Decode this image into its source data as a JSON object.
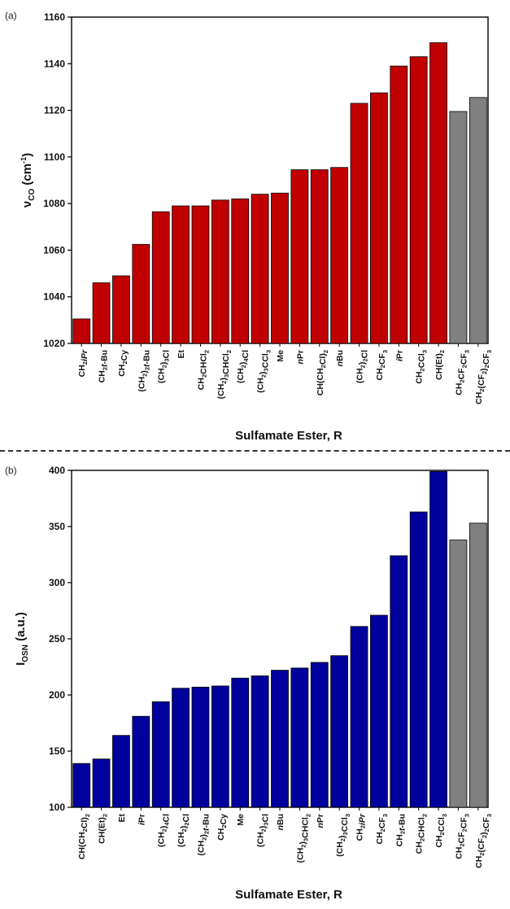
{
  "panels": [
    {
      "label": "(a)",
      "xlabel": "Sulfamate Ester, R",
      "chart_data": {
        "type": "bar",
        "title": "",
        "xlabel": "Sulfamate Ester, R",
        "ylabel_main": "ν",
        "ylabel_sub": "CO",
        "ylabel_unit": "(cm",
        "ylabel_sup": "-1",
        "ylabel_end": ")",
        "ylim": [
          1020,
          1160
        ],
        "yticks": [
          1020,
          1040,
          1060,
          1080,
          1100,
          1120,
          1140,
          1160
        ],
        "colors": {
          "primary": "#c00000",
          "reference": "#808080"
        },
        "categories": [
          [
            [
              "CH",
              "n"
            ],
            [
              "2",
              "sub"
            ],
            [
              "iPr",
              "i"
            ]
          ],
          [
            [
              "CH",
              "n"
            ],
            [
              "2",
              "sub"
            ],
            [
              "t",
              "i"
            ],
            [
              "-Bu",
              "n"
            ]
          ],
          [
            [
              "CH",
              "n"
            ],
            [
              "2",
              "sub"
            ],
            [
              "Cy",
              "n"
            ]
          ],
          [
            [
              "(CH",
              "n"
            ],
            [
              "2",
              "sub"
            ],
            [
              ")",
              "n"
            ],
            [
              "2",
              "sub"
            ],
            [
              "t",
              "i"
            ],
            [
              "-Bu",
              "n"
            ]
          ],
          [
            [
              "(CH",
              "n"
            ],
            [
              "2",
              "sub"
            ],
            [
              ")",
              "n"
            ],
            [
              "3",
              "sub"
            ],
            [
              "Cl",
              "n"
            ]
          ],
          [
            [
              "Et",
              "n"
            ]
          ],
          [
            [
              "CH",
              "n"
            ],
            [
              "2",
              "sub"
            ],
            [
              "CHCl",
              "n"
            ],
            [
              "2",
              "sub"
            ]
          ],
          [
            [
              "(CH",
              "n"
            ],
            [
              "2",
              "sub"
            ],
            [
              ")",
              "n"
            ],
            [
              "3",
              "sub"
            ],
            [
              "CHCl",
              "n"
            ],
            [
              "2",
              "sub"
            ]
          ],
          [
            [
              "(CH",
              "n"
            ],
            [
              "2",
              "sub"
            ],
            [
              ")",
              "n"
            ],
            [
              "4",
              "sub"
            ],
            [
              "Cl",
              "n"
            ]
          ],
          [
            [
              "(CH",
              "n"
            ],
            [
              "2",
              "sub"
            ],
            [
              ")",
              "n"
            ],
            [
              "3",
              "sub"
            ],
            [
              "CCl",
              "n"
            ],
            [
              "3",
              "sub"
            ]
          ],
          [
            [
              "Me",
              "n"
            ]
          ],
          [
            [
              "n",
              "i"
            ],
            [
              "Pr",
              "n"
            ]
          ],
          [
            [
              "CH(CH",
              "n"
            ],
            [
              "2",
              "sub"
            ],
            [
              "Cl)",
              "n"
            ],
            [
              "2",
              "sub"
            ]
          ],
          [
            [
              "n",
              "i"
            ],
            [
              "Bu",
              "n"
            ]
          ],
          [
            [
              "(CH",
              "n"
            ],
            [
              "2",
              "sub"
            ],
            [
              ")",
              "n"
            ],
            [
              "2",
              "sub"
            ],
            [
              "Cl",
              "n"
            ]
          ],
          [
            [
              "CH",
              "n"
            ],
            [
              "2",
              "sub"
            ],
            [
              "CF",
              "n"
            ],
            [
              "3",
              "sub"
            ]
          ],
          [
            [
              "i",
              "i"
            ],
            [
              "Pr",
              "n"
            ]
          ],
          [
            [
              "CH",
              "n"
            ],
            [
              "2",
              "sub"
            ],
            [
              "CCl",
              "n"
            ],
            [
              "3",
              "sub"
            ]
          ],
          [
            [
              "CH(Et)",
              "n"
            ],
            [
              "2",
              "sub"
            ]
          ],
          [
            [
              "CH",
              "n"
            ],
            [
              "2",
              "sub"
            ],
            [
              "CF",
              "n"
            ],
            [
              "2",
              "sub"
            ],
            [
              "CF",
              "n"
            ],
            [
              "3",
              "sub"
            ]
          ],
          [
            [
              "CH",
              "n"
            ],
            [
              "2",
              "sub"
            ],
            [
              "(CF",
              "n"
            ],
            [
              "2",
              "sub"
            ],
            [
              ")",
              "n"
            ],
            [
              "2",
              "sub"
            ],
            [
              "CF",
              "n"
            ],
            [
              "3",
              "sub"
            ]
          ]
        ],
        "values": [
          1030.5,
          1046,
          1049,
          1062.5,
          1076.5,
          1079,
          1079,
          1081.5,
          1082,
          1084,
          1084.5,
          1094.5,
          1094.5,
          1095.5,
          1123,
          1127.5,
          1139,
          1143,
          1149,
          1119.5,
          1125.5
        ],
        "color_keys": [
          "primary",
          "primary",
          "primary",
          "primary",
          "primary",
          "primary",
          "primary",
          "primary",
          "primary",
          "primary",
          "primary",
          "primary",
          "primary",
          "primary",
          "primary",
          "primary",
          "primary",
          "primary",
          "primary",
          "reference",
          "reference"
        ]
      }
    },
    {
      "label": "(b)",
      "xlabel": "Sulfamate Ester, R",
      "chart_data": {
        "type": "bar",
        "title": "",
        "xlabel": "Sulfamate Ester, R",
        "ylabel_main": "I",
        "ylabel_sub": "OSN",
        "ylabel_unit": " (a.u.)",
        "ylabel_sup": "",
        "ylabel_end": "",
        "ylim": [
          100,
          400
        ],
        "yticks": [
          100,
          150,
          200,
          250,
          300,
          350,
          400
        ],
        "colors": {
          "primary": "#00009c",
          "reference": "#808080"
        },
        "categories": [
          [
            [
              "CH(CH",
              "n"
            ],
            [
              "2",
              "sub"
            ],
            [
              "Cl)",
              "n"
            ],
            [
              "2",
              "sub"
            ]
          ],
          [
            [
              "CH(Et)",
              "n"
            ],
            [
              "2",
              "sub"
            ]
          ],
          [
            [
              "Et",
              "n"
            ]
          ],
          [
            [
              "i",
              "i"
            ],
            [
              "Pr",
              "n"
            ]
          ],
          [
            [
              "(CH",
              "n"
            ],
            [
              "2",
              "sub"
            ],
            [
              ")",
              "n"
            ],
            [
              "4",
              "sub"
            ],
            [
              "Cl",
              "n"
            ]
          ],
          [
            [
              "(CH",
              "n"
            ],
            [
              "2",
              "sub"
            ],
            [
              ")",
              "n"
            ],
            [
              "2",
              "sub"
            ],
            [
              "Cl",
              "n"
            ]
          ],
          [
            [
              "(CH",
              "n"
            ],
            [
              "2",
              "sub"
            ],
            [
              ")",
              "n"
            ],
            [
              "2",
              "sub"
            ],
            [
              "t",
              "i"
            ],
            [
              "-Bu",
              "n"
            ]
          ],
          [
            [
              "CH",
              "n"
            ],
            [
              "2",
              "sub"
            ],
            [
              "Cy",
              "n"
            ]
          ],
          [
            [
              "Me",
              "n"
            ]
          ],
          [
            [
              "(CH",
              "n"
            ],
            [
              "2",
              "sub"
            ],
            [
              ")",
              "n"
            ],
            [
              "3",
              "sub"
            ],
            [
              "Cl",
              "n"
            ]
          ],
          [
            [
              "n",
              "i"
            ],
            [
              "Bu",
              "n"
            ]
          ],
          [
            [
              "(CH",
              "n"
            ],
            [
              "2",
              "sub"
            ],
            [
              ")",
              "n"
            ],
            [
              "3",
              "sub"
            ],
            [
              "CHCl",
              "n"
            ],
            [
              "2",
              "sub"
            ]
          ],
          [
            [
              "n",
              "i"
            ],
            [
              "Pr",
              "n"
            ]
          ],
          [
            [
              "(CH",
              "n"
            ],
            [
              "2",
              "sub"
            ],
            [
              ")",
              "n"
            ],
            [
              "3",
              "sub"
            ],
            [
              "CCl",
              "n"
            ],
            [
              "3",
              "sub"
            ]
          ],
          [
            [
              "CH",
              "n"
            ],
            [
              "2",
              "sub"
            ],
            [
              "iPr",
              "i"
            ]
          ],
          [
            [
              "CH",
              "n"
            ],
            [
              "2",
              "sub"
            ],
            [
              "CF",
              "n"
            ],
            [
              "3",
              "sub"
            ]
          ],
          [
            [
              "CH",
              "n"
            ],
            [
              "2",
              "sub"
            ],
            [
              "t",
              "i"
            ],
            [
              "-Bu",
              "n"
            ]
          ],
          [
            [
              "CH",
              "n"
            ],
            [
              "2",
              "sub"
            ],
            [
              "CHCl",
              "n"
            ],
            [
              "2",
              "sub"
            ]
          ],
          [
            [
              "CH",
              "n"
            ],
            [
              "2",
              "sub"
            ],
            [
              "CCl",
              "n"
            ],
            [
              "3",
              "sub"
            ]
          ],
          [
            [
              "CH",
              "n"
            ],
            [
              "2",
              "sub"
            ],
            [
              "CF",
              "n"
            ],
            [
              "2",
              "sub"
            ],
            [
              "CF",
              "n"
            ],
            [
              "3",
              "sub"
            ]
          ],
          [
            [
              "CH",
              "n"
            ],
            [
              "2",
              "sub"
            ],
            [
              "(CF",
              "n"
            ],
            [
              "2",
              "sub"
            ],
            [
              ")",
              "n"
            ],
            [
              "2",
              "sub"
            ],
            [
              "CF",
              "n"
            ],
            [
              "3",
              "sub"
            ]
          ]
        ],
        "values": [
          139,
          143,
          164,
          181,
          194,
          206,
          207,
          208,
          215,
          217,
          222,
          224,
          229,
          235,
          261,
          271,
          324,
          363,
          399,
          338,
          353
        ],
        "color_keys": [
          "primary",
          "primary",
          "primary",
          "primary",
          "primary",
          "primary",
          "primary",
          "primary",
          "primary",
          "primary",
          "primary",
          "primary",
          "primary",
          "primary",
          "primary",
          "primary",
          "primary",
          "primary",
          "primary",
          "reference",
          "reference"
        ]
      }
    }
  ]
}
